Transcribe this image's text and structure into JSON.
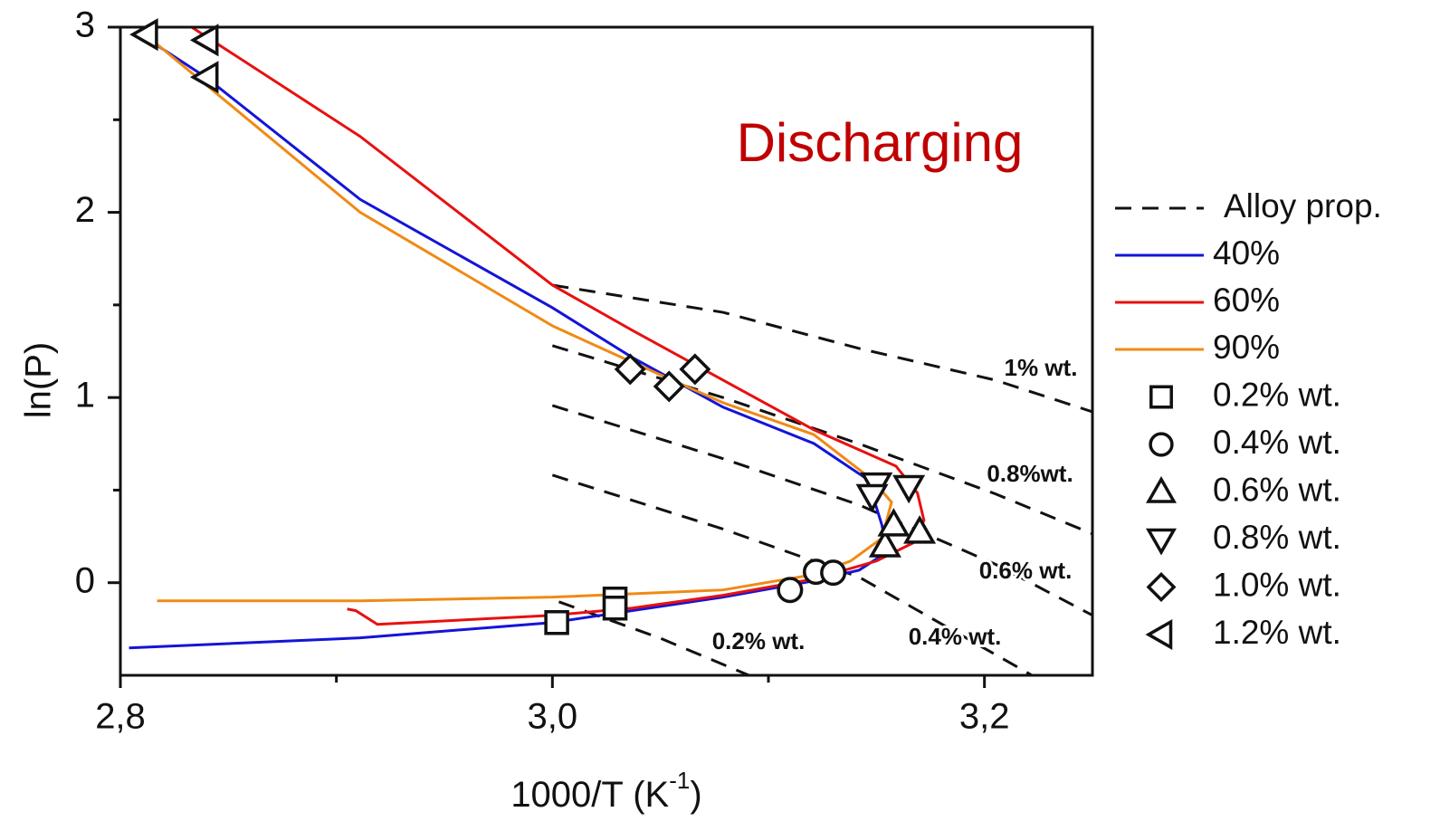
{
  "chart_data": {
    "type": "line",
    "annotation": "Discharging",
    "annotation_color": "#c00000",
    "ylabel": "ln(P)",
    "xlabel": [
      "1000/T (K",
      "-1",
      ")"
    ],
    "xlim": [
      2.8,
      3.25
    ],
    "ylim": [
      -0.5,
      3
    ],
    "xticks": [
      {
        "value": 2.8,
        "label": "2,8"
      },
      {
        "value": 3.0,
        "label": "3,0"
      },
      {
        "value": 3.2,
        "label": "3,2"
      }
    ],
    "xminor": [
      2.9,
      3.1
    ],
    "yticks": [
      0,
      1,
      2,
      3
    ],
    "yminor": [
      0.5,
      1.5,
      2.5
    ],
    "series": [
      {
        "name": "40%",
        "color": "#1414d8",
        "x": [
          2.808,
          2.8395,
          2.911,
          3.0,
          3.037,
          3.079,
          3.121,
          3.146,
          3.1525,
          3.155,
          3.142,
          3.121,
          3.079,
          3.0,
          2.911,
          2.804
        ],
        "values": [
          2.97,
          2.73,
          2.07,
          1.485,
          1.216,
          0.948,
          0.752,
          0.557,
          0.313,
          0.166,
          0.068,
          0.01,
          -0.078,
          -0.215,
          -0.298,
          -0.352
        ]
      },
      {
        "name": "60%",
        "color": "#e81010",
        "x": [
          2.833,
          2.911,
          3.0,
          3.037,
          3.079,
          3.121,
          3.159,
          3.169,
          3.172,
          3.167,
          3.15,
          3.121,
          3.079,
          3.037,
          3.0,
          2.919,
          2.909,
          2.905
        ],
        "values": [
          3.0,
          2.41,
          1.607,
          1.363,
          1.094,
          0.826,
          0.63,
          0.484,
          0.337,
          0.215,
          0.117,
          0.02,
          -0.068,
          -0.137,
          -0.176,
          -0.225,
          -0.151,
          -0.142
        ]
      },
      {
        "name": "90%",
        "color": "#f08a14",
        "x": [
          2.81,
          2.911,
          3.0,
          3.037,
          3.079,
          3.121,
          3.148,
          3.157,
          3.1525,
          3.138,
          3.121,
          3.079,
          3.0,
          2.911,
          2.817
        ],
        "values": [
          2.975,
          2.0,
          1.387,
          1.19,
          0.972,
          0.8,
          0.557,
          0.435,
          0.24,
          0.117,
          0.044,
          -0.039,
          -0.078,
          -0.098,
          -0.098
        ]
      }
    ],
    "reference": {
      "name": "Alloy prop.",
      "color": "#111111",
      "lines": [
        {
          "label": "1% wt.",
          "x": [
            3.0,
            3.079,
            3.142,
            3.205,
            3.25
          ],
          "values": [
            1.607,
            1.46,
            1.265,
            1.094,
            0.923
          ]
        },
        {
          "label": "0.8%wt.",
          "x": [
            3.0,
            3.079,
            3.142,
            3.205,
            3.25
          ],
          "values": [
            1.28,
            1.0,
            0.75,
            0.48,
            0.264
          ]
        },
        {
          "label": "0.6% wt.",
          "x": [
            3.0,
            3.079,
            3.142,
            3.205,
            3.25
          ],
          "values": [
            0.957,
            0.67,
            0.42,
            0.1,
            -0.176
          ]
        },
        {
          "label": "0.4% wt.",
          "x": [
            3.0,
            3.079,
            3.142,
            3.222
          ],
          "values": [
            0.581,
            0.29,
            0.03,
            -0.5
          ]
        },
        {
          "label": "0.2% wt.",
          "x": [
            3.003,
            3.05,
            3.091
          ],
          "values": [
            -0.103,
            -0.3,
            -0.5
          ]
        }
      ]
    },
    "markers": [
      {
        "name": "0.2% wt.",
        "shape": "square",
        "x": [
          3.002,
          3.029,
          3.029
        ],
        "values": [
          -0.215,
          -0.088,
          -0.137
        ]
      },
      {
        "name": "0.4% wt.",
        "shape": "circle",
        "x": [
          3.11,
          3.122,
          3.13
        ],
        "values": [
          -0.039,
          0.059,
          0.054
        ]
      },
      {
        "name": "0.6% wt.",
        "shape": "triangle-up",
        "x": [
          3.154,
          3.158,
          3.17
        ],
        "values": [
          0.2,
          0.313,
          0.274
        ]
      },
      {
        "name": "0.8% wt.",
        "shape": "triangle-down",
        "x": [
          3.15,
          3.165,
          3.148
        ],
        "values": [
          0.532,
          0.518,
          0.469
        ]
      },
      {
        "name": "1.0% wt.",
        "shape": "diamond",
        "x": [
          3.036,
          3.054,
          3.066
        ],
        "values": [
          1.153,
          1.06,
          1.153
        ]
      },
      {
        "name": "1.2% wt.",
        "shape": "triangle-left",
        "x": [
          2.812,
          2.84,
          2.84
        ],
        "values": [
          2.96,
          2.93,
          2.73
        ]
      }
    ]
  }
}
